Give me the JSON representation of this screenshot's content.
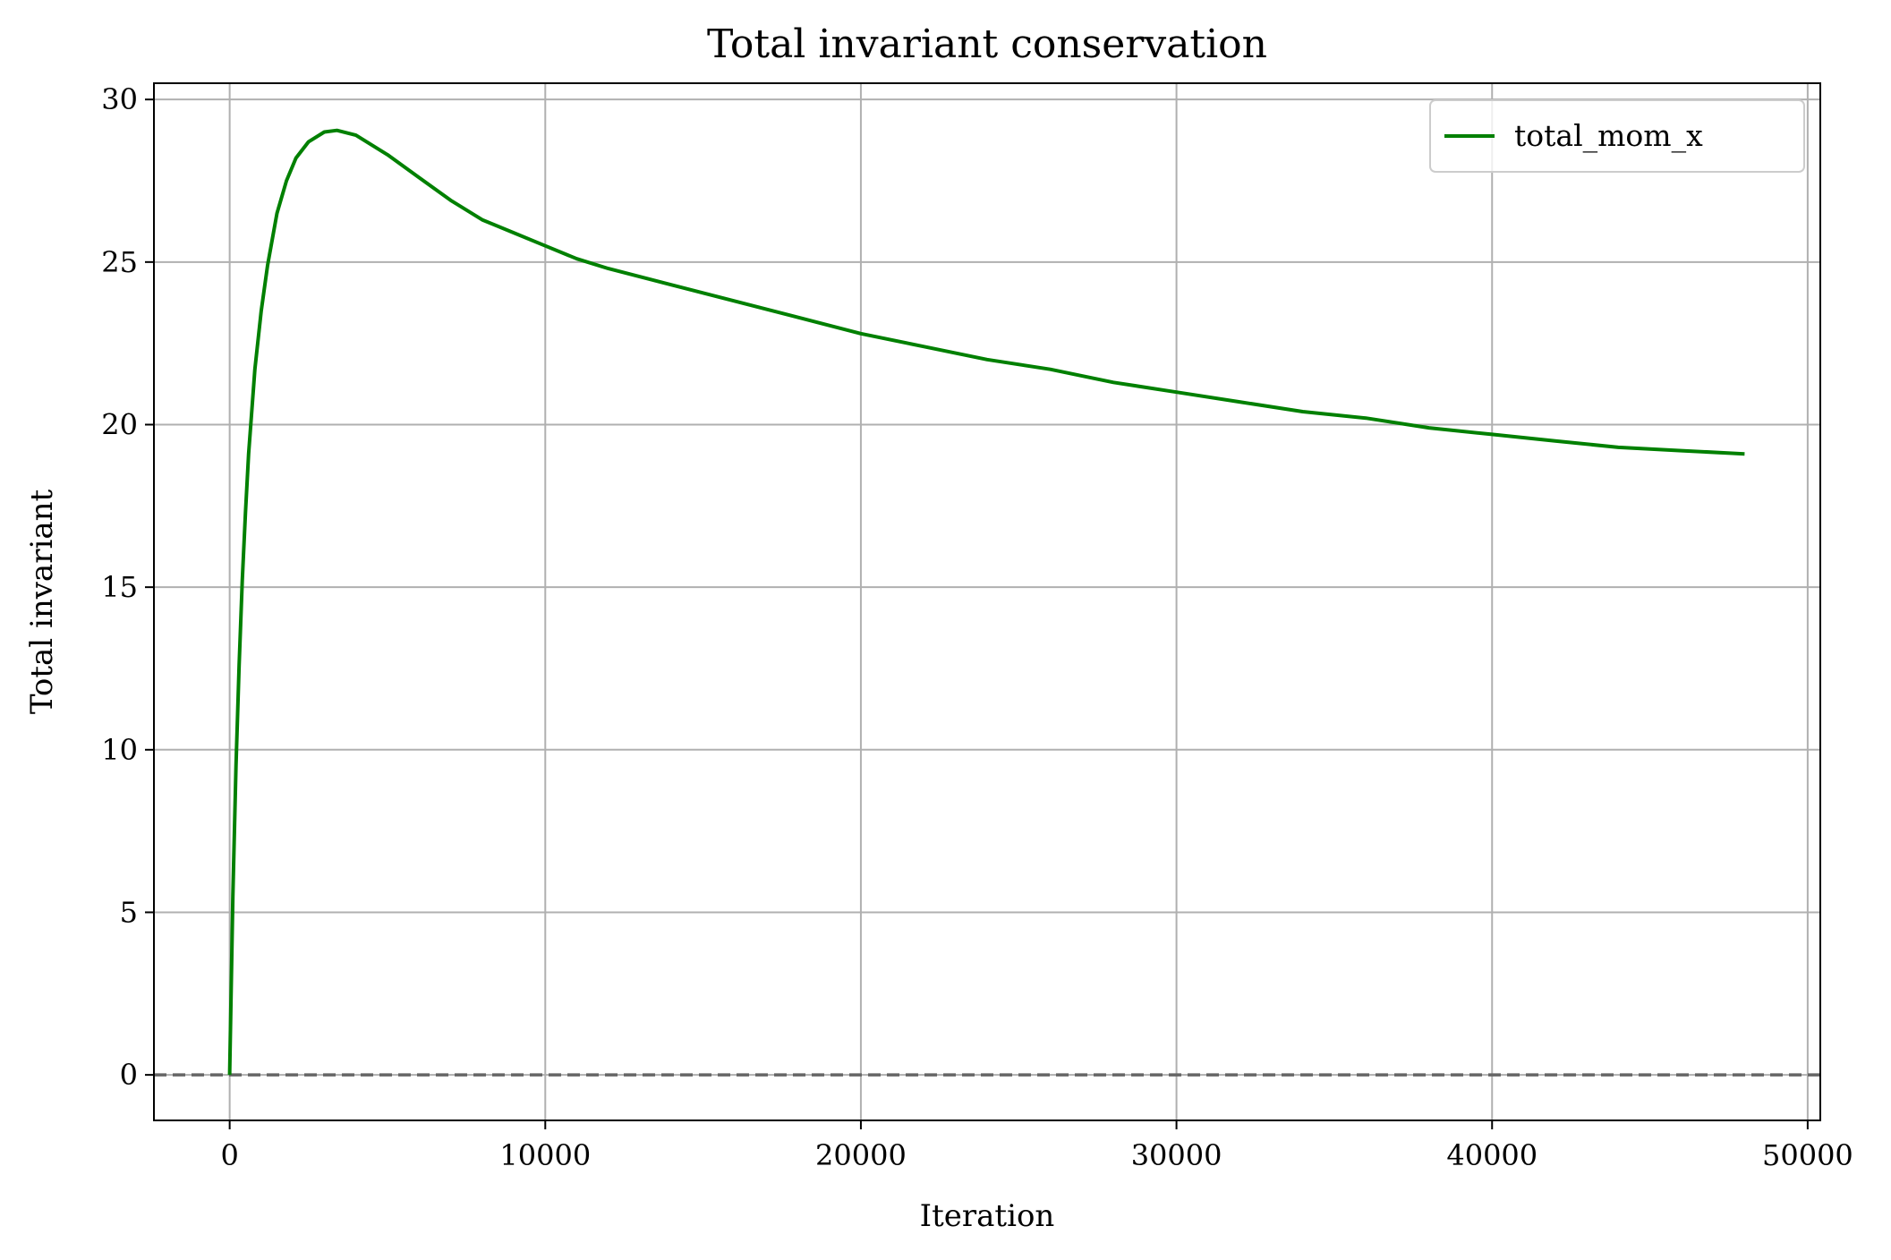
{
  "chart_data": {
    "type": "line",
    "title": "Total invariant conservation",
    "xlabel": "Iteration",
    "ylabel": "Total invariant",
    "xlim": [
      -2400,
      50400
    ],
    "ylim": [
      -1.4,
      30.5
    ],
    "xticks": [
      0,
      10000,
      20000,
      30000,
      40000,
      50000
    ],
    "xtick_labels": [
      "0",
      "10000",
      "20000",
      "30000",
      "40000",
      "50000"
    ],
    "yticks": [
      0,
      5,
      10,
      15,
      20,
      25,
      30
    ],
    "ytick_labels": [
      "0",
      "5",
      "10",
      "15",
      "20",
      "25",
      "30"
    ],
    "grid": true,
    "legend_position": "top-right",
    "reference_line": {
      "y": 0,
      "style": "dashed",
      "color": "#666666"
    },
    "series": [
      {
        "name": "total_mom_x",
        "color": "#008000",
        "x": [
          0,
          100,
          200,
          300,
          400,
          500,
          600,
          800,
          1000,
          1200,
          1500,
          1800,
          2100,
          2500,
          3000,
          3400,
          4000,
          5000,
          6000,
          7000,
          8000,
          9000,
          10000,
          11000,
          12000,
          14000,
          16000,
          18000,
          20000,
          22000,
          24000,
          26000,
          28000,
          30000,
          32000,
          34000,
          36000,
          38000,
          40000,
          42000,
          44000,
          46000,
          48000
        ],
        "values": [
          0,
          5.5,
          9.5,
          12.6,
          15.2,
          17.3,
          19.1,
          21.7,
          23.5,
          24.9,
          26.5,
          27.5,
          28.2,
          28.7,
          29.0,
          29.05,
          28.9,
          28.3,
          27.6,
          26.9,
          26.3,
          25.9,
          25.5,
          25.1,
          24.8,
          24.3,
          23.8,
          23.3,
          22.8,
          22.4,
          22.0,
          21.7,
          21.3,
          21.0,
          20.7,
          20.4,
          20.2,
          19.9,
          19.7,
          19.5,
          19.3,
          19.2,
          19.1
        ]
      }
    ]
  }
}
